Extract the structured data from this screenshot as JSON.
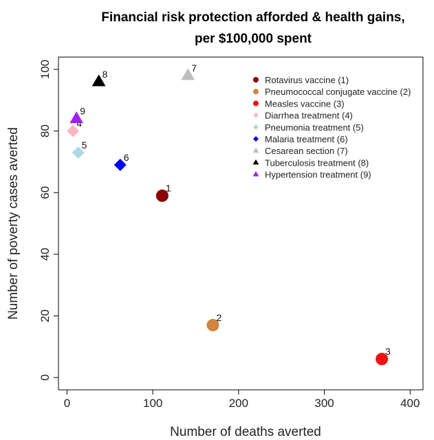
{
  "chart_data": {
    "type": "scatter",
    "title": [
      "Financial risk protection afforded & health gains,",
      "per $100,000 spent"
    ],
    "xlabel": "Number of deaths averted",
    "ylabel": "Number of poverty cases averted",
    "xlim": [
      -10,
      415
    ],
    "ylim": [
      -4,
      104
    ],
    "xticks": [
      0,
      100,
      200,
      300,
      400
    ],
    "yticks": [
      0,
      20,
      40,
      60,
      80,
      100
    ],
    "grid": false,
    "legend_position": "top-right",
    "series": [
      {
        "name": "Rotavirus vaccine (1)",
        "label": "1",
        "x": 111,
        "y": 59,
        "color": "#8b0000",
        "shape": "circle"
      },
      {
        "name": "Pneumococcal conjugate vaccine (2)",
        "label": "2",
        "x": 170,
        "y": 17,
        "color": "#cd853f",
        "shape": "circle"
      },
      {
        "name": "Measles vaccine (3)",
        "label": "3",
        "x": 367,
        "y": 6,
        "color": "#ee1111",
        "shape": "circle"
      },
      {
        "name": "Diarrhea treatment (4)",
        "label": "4",
        "x": 7,
        "y": 80,
        "color": "#ffb6c1",
        "shape": "diamond"
      },
      {
        "name": "Pneumonia treatment (5)",
        "label": "5",
        "x": 13,
        "y": 73,
        "color": "#add8e6",
        "shape": "diamond"
      },
      {
        "name": "Malaria treatment (6)",
        "label": "6",
        "x": 62,
        "y": 69,
        "color": "#0000ee",
        "shape": "diamond"
      },
      {
        "name": "Cesarean section (7)",
        "label": "7",
        "x": 141,
        "y": 98,
        "color": "#bebebe",
        "shape": "triangle"
      },
      {
        "name": "Tuberculosis treatment (8)",
        "label": "8",
        "x": 37,
        "y": 96,
        "color": "#000000",
        "shape": "triangle"
      },
      {
        "name": "Hypertension treatment (9)",
        "label": "9",
        "x": 11,
        "y": 84,
        "color": "#a020f0",
        "shape": "triangle"
      }
    ]
  }
}
